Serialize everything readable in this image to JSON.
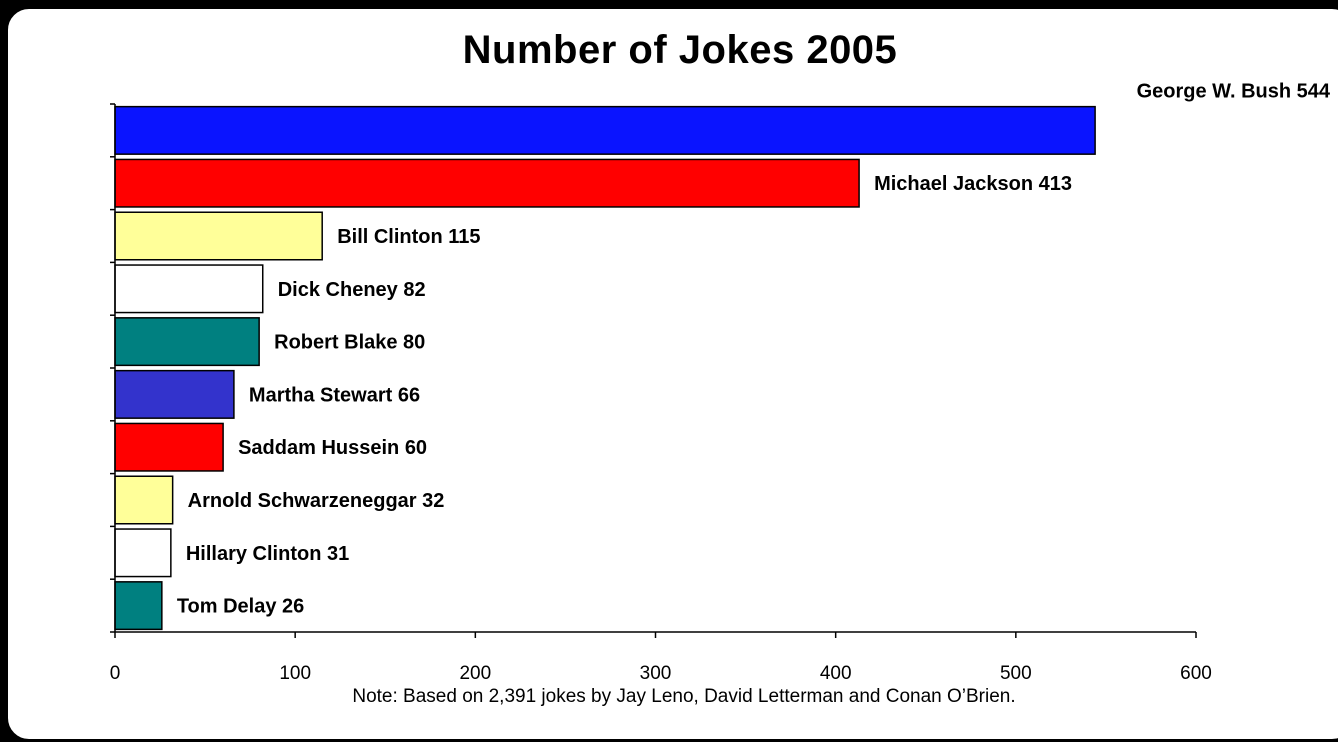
{
  "chart_data": {
    "type": "bar",
    "orientation": "horizontal",
    "title": "Number  of  Jokes 2005",
    "note": "Note:  Based on 2,391 jokes by Jay Leno, David Letterman and Conan O’Brien.",
    "xlim": [
      0,
      600
    ],
    "xticks": [
      "0",
      "100",
      "200",
      "300",
      "400",
      "500",
      "600"
    ],
    "grid": false,
    "bars": [
      {
        "name": "George W. Bush",
        "value": 544,
        "label": "George W. Bush 544",
        "color": "#0a14ff"
      },
      {
        "name": "Michael Jackson",
        "value": 413,
        "label": "Michael Jackson  413",
        "color": "#ff0000"
      },
      {
        "name": "Bill Clinton",
        "value": 115,
        "label": "Bill Clinton  115",
        "color": "#ffff99"
      },
      {
        "name": "Dick Cheney",
        "value": 82,
        "label": "Dick Cheney  82",
        "color": "#ffffff"
      },
      {
        "name": "Robert Blake",
        "value": 80,
        "label": "Robert Blake  80",
        "color": "#008080"
      },
      {
        "name": "Martha Stewart",
        "value": 66,
        "label": "Martha Stewart  66",
        "color": "#3333cc"
      },
      {
        "name": "Saddam Hussein",
        "value": 60,
        "label": "Saddam Hussein  60",
        "color": "#ff0000"
      },
      {
        "name": "Arnold Schwarzeneggar",
        "value": 32,
        "label": "Arnold Schwarzeneggar  32",
        "color": "#ffff99"
      },
      {
        "name": "Hillary Clinton",
        "value": 31,
        "label": "Hillary Clinton  31",
        "color": "#ffffff"
      },
      {
        "name": "Tom Delay",
        "value": 26,
        "label": "Tom Delay  26",
        "color": "#008080"
      }
    ]
  }
}
